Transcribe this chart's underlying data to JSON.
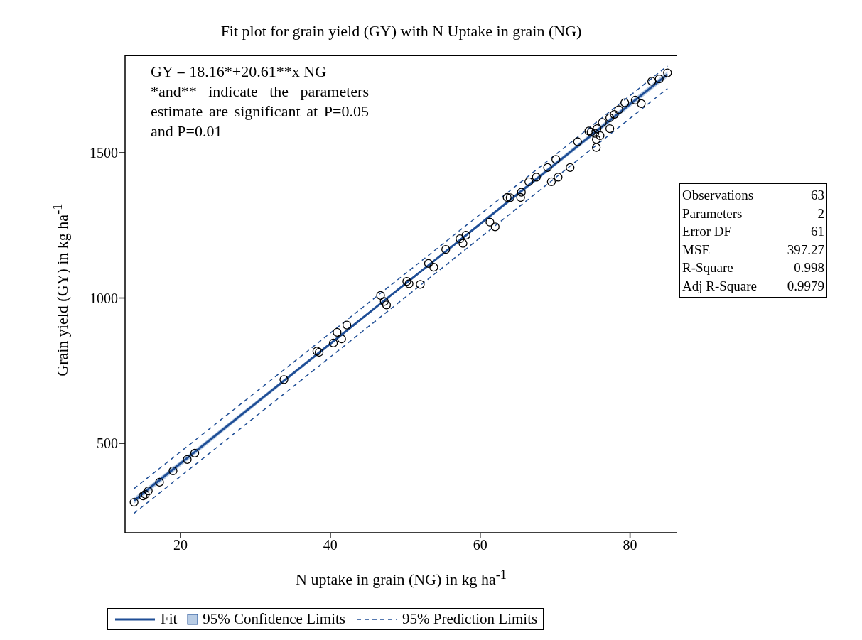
{
  "chart_data": {
    "type": "scatter",
    "title": "Fit plot for grain yield (GY) with N Uptake in grain (NG)",
    "xlabel": "N uptake in grain (NG) in kg ha$^{-1}$",
    "ylabel": "Grain yield (GY) in kg ha$^{-1}$",
    "xlim": [
      12.6,
      86.3
    ],
    "ylim": [
      192,
      1835
    ],
    "xticks": [
      20,
      40,
      60,
      80
    ],
    "yticks": [
      500,
      1000,
      1500
    ],
    "legend": "bottom",
    "series": [
      {
        "color": "#000000",
        "marker": "circle",
        "x": [
          13.8,
          15.0,
          15.3,
          15.7,
          17.2,
          19.0,
          20.9,
          21.9,
          33.8,
          38.2,
          38.5,
          40.4,
          40.9,
          41.5,
          42.2,
          46.7,
          47.2,
          47.5,
          50.2,
          50.5,
          52.0,
          53.1,
          53.8,
          55.4,
          57.3,
          58.1,
          57.7,
          61.3,
          62.0,
          64.0,
          63.6,
          65.4,
          65.5,
          66.5,
          67.5,
          69.0,
          70.1,
          69.5,
          70.4,
          72.0,
          73.0,
          74.5,
          74.8,
          75.3,
          75.6,
          75.5,
          76.0,
          75.5,
          76.3,
          77.3,
          77.3,
          77.9,
          78.5,
          79.3,
          80.7,
          81.5,
          82.9,
          83.9,
          85.0
        ],
        "values": [
          297,
          319,
          324,
          336,
          366,
          405,
          444,
          466,
          719,
          817,
          813,
          845,
          882,
          859,
          907,
          1009,
          988,
          976,
          1057,
          1049,
          1047,
          1119,
          1106,
          1167,
          1204,
          1216,
          1188,
          1261,
          1245,
          1345,
          1346,
          1346,
          1364,
          1400,
          1416,
          1449,
          1477,
          1400,
          1416,
          1449,
          1538,
          1575,
          1571,
          1567,
          1583,
          1546,
          1559,
          1518,
          1604,
          1583,
          1620,
          1632,
          1648,
          1672,
          1681,
          1669,
          1746,
          1754,
          1775
        ]
      },
      {
        "type": "line",
        "name": "Fit",
        "color": "#1f4e96",
        "line_style": "solid",
        "x": [
          13.8,
          85
        ],
        "values": [
          303,
          1770
        ]
      },
      {
        "type": "line",
        "name": "95% Confidence Limits",
        "color": "#b8cce4",
        "x": [
          13.8,
          50,
          85
        ],
        "values": [
          null,
          null,
          null
        ],
        "lower": [
          292,
          1046,
          1760
        ],
        "upper": [
          313,
          1052,
          1780
        ]
      },
      {
        "type": "line",
        "name": "95% Prediction Limits",
        "color": "#1f4e96",
        "line_style": "dashed",
        "x": [
          13.8,
          85
        ],
        "values": [
          344,
          1799
        ]
      },
      {
        "type": "line",
        "color": "#1f4e96",
        "line_style": "dashed",
        "x": [
          13.8,
          85
        ],
        "values": [
          259,
          1721
        ]
      }
    ],
    "annotations": [
      "GY = 18.16*+20.61**x NG",
      "*and** indicate the parameters estimate are significant at P=0.05 and P=0.01",
      "Observations 63",
      "Parameters 2",
      "Error DF 61",
      "MSE 397.27",
      "R-Square 0.998",
      "Adj R-Square 0.9979"
    ]
  }
}
